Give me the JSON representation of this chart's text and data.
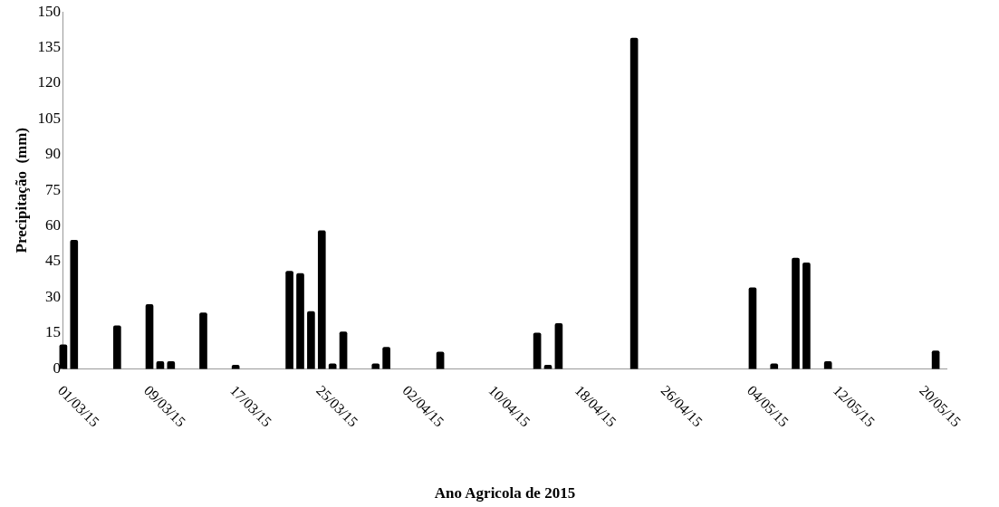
{
  "chart_data": {
    "type": "bar",
    "xlabel": "Ano Agricola de 2015",
    "ylabel": "Precipitação  (mm)",
    "x": [
      "2015-03-01",
      "2015-03-02",
      "2015-03-06",
      "2015-03-09",
      "2015-03-10",
      "2015-03-11",
      "2015-03-14",
      "2015-03-17",
      "2015-03-22",
      "2015-03-23",
      "2015-03-24",
      "2015-03-25",
      "2015-03-26",
      "2015-03-27",
      "2015-03-30",
      "2015-03-31",
      "2015-04-05",
      "2015-04-14",
      "2015-04-15",
      "2015-04-16",
      "2015-04-23",
      "2015-05-04",
      "2015-05-06",
      "2015-05-08",
      "2015-05-09",
      "2015-05-11",
      "2015-05-21"
    ],
    "series": [
      {
        "color": "#000000",
        "values": [
          10,
          54,
          18,
          27,
          3,
          3,
          23.5,
          1.5,
          41,
          40,
          24,
          58,
          2,
          15.5,
          2,
          9,
          7,
          15,
          1.5,
          19,
          139,
          34,
          2,
          46.5,
          44.5,
          3,
          7.5
        ]
      }
    ],
    "xlim": [
      "2015-03-01",
      "2015-05-22"
    ],
    "xticks": [
      {
        "value": "2015-03-01",
        "label": "01/03/15"
      },
      {
        "value": "2015-03-09",
        "label": "09/03/15"
      },
      {
        "value": "2015-03-17",
        "label": "17/03/15"
      },
      {
        "value": "2015-03-25",
        "label": "25/03/15"
      },
      {
        "value": "2015-04-02",
        "label": "02/04/15"
      },
      {
        "value": "2015-04-10",
        "label": "10/04/15"
      },
      {
        "value": "2015-04-18",
        "label": "18/04/15"
      },
      {
        "value": "2015-04-26",
        "label": "26/04/15"
      },
      {
        "value": "2015-05-04",
        "label": "04/05/15"
      },
      {
        "value": "2015-05-12",
        "label": "12/05/15"
      },
      {
        "value": "2015-05-20",
        "label": "20/05/15"
      }
    ],
    "ylim": [
      0,
      150
    ],
    "yticks": [
      0,
      15,
      30,
      45,
      60,
      75,
      90,
      105,
      120,
      135,
      150
    ],
    "grid": false,
    "legend": false
  }
}
